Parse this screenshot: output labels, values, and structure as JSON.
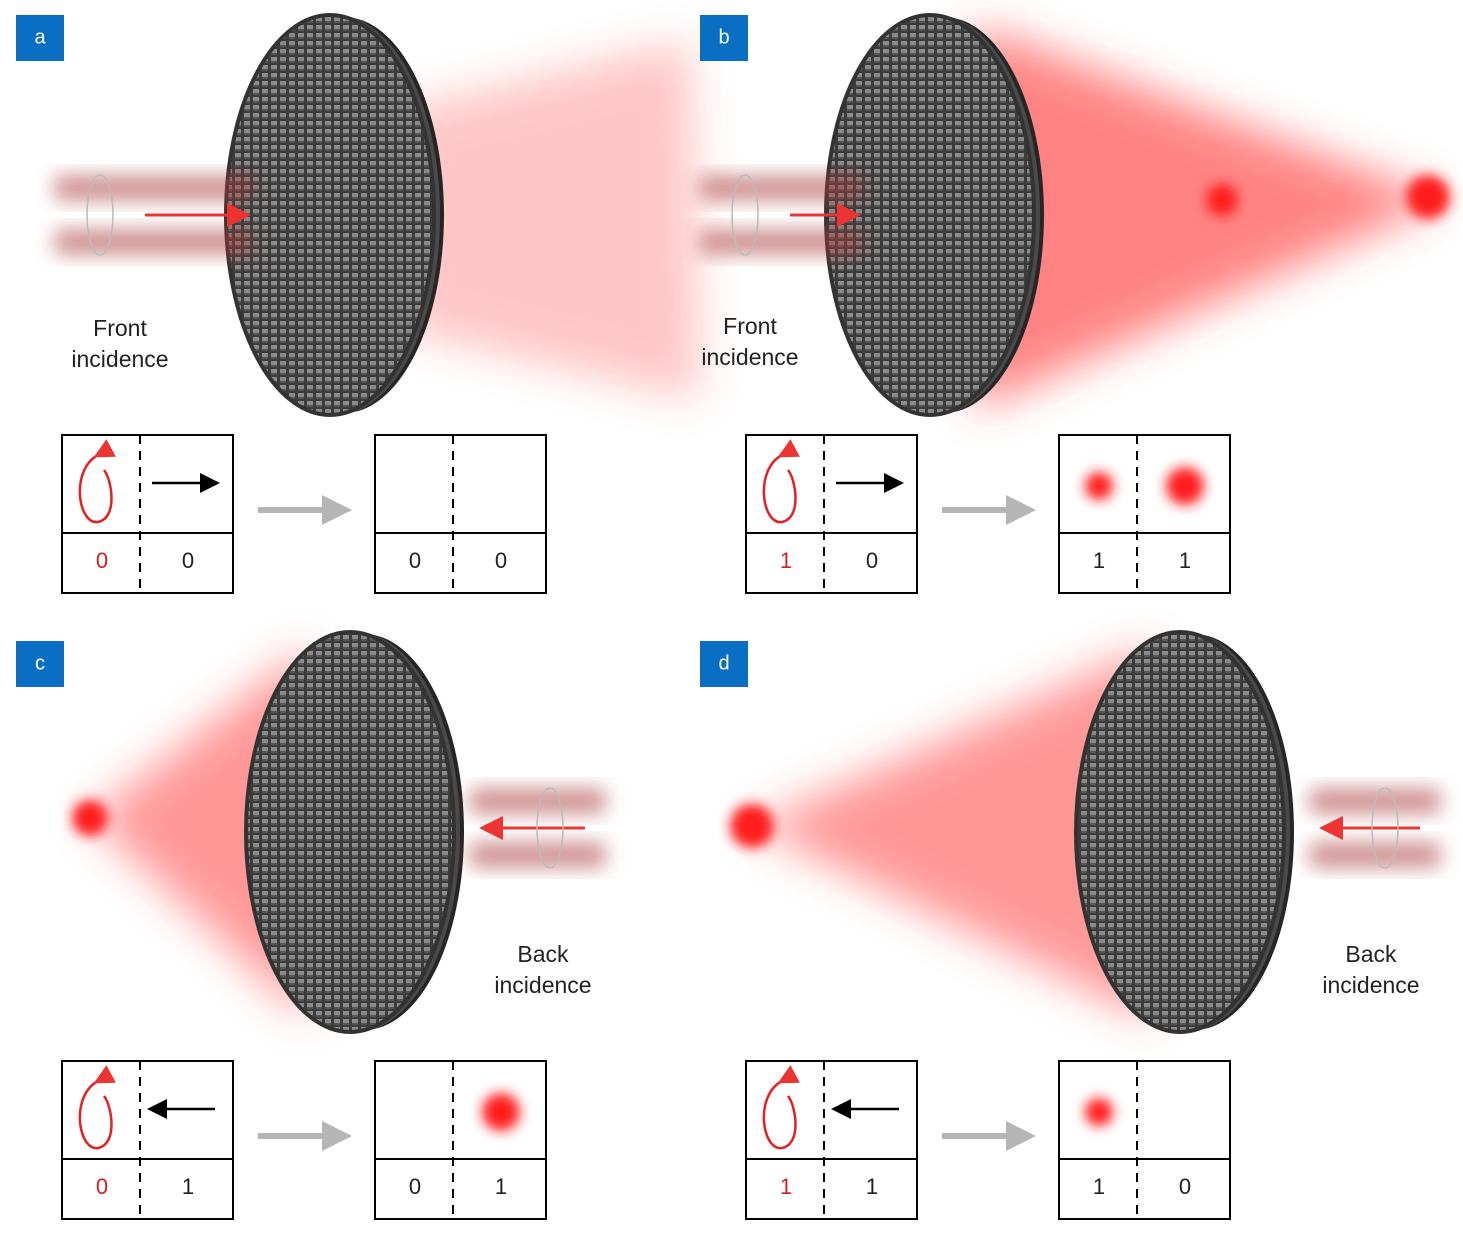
{
  "panels": [
    {
      "label": "a",
      "incidence": [
        "Front",
        "incidence"
      ],
      "input": [
        0,
        0
      ],
      "output": [
        0,
        0
      ]
    },
    {
      "label": "b",
      "incidence": [
        "Front",
        "incidence"
      ],
      "input": [
        1,
        0
      ],
      "output": [
        1,
        1
      ]
    },
    {
      "label": "c",
      "incidence": [
        "Back",
        "incidence"
      ],
      "input": [
        0,
        1
      ],
      "output": [
        0,
        1
      ]
    },
    {
      "label": "d",
      "incidence": [
        "Back",
        "incidence"
      ],
      "input": [
        1,
        1
      ],
      "output": [
        1,
        0
      ]
    }
  ]
}
